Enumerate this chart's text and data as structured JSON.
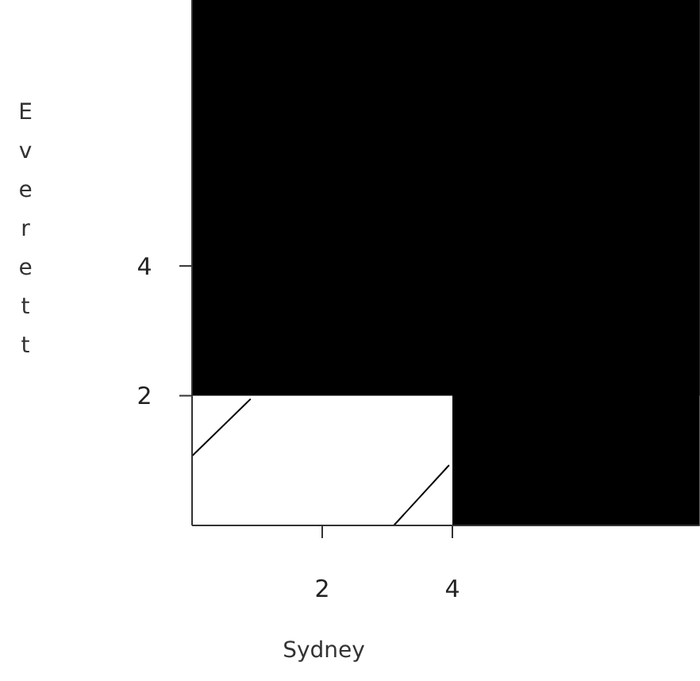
{
  "chart_data": {
    "type": "line",
    "xlabel": "Sydney",
    "ylabel": "Everett",
    "xlim": [
      0,
      7.8
    ],
    "ylim": [
      0,
      8.1
    ],
    "xticks": [
      2,
      4
    ],
    "yticks": [
      2,
      4
    ],
    "grid": false,
    "series": [
      {
        "color": "#000000",
        "x": [
          0,
          0.9
        ],
        "values": [
          1.07,
          1.95
        ]
      },
      {
        "color": "#000000",
        "x": [
          3.1,
          3.95
        ],
        "values": [
          0,
          0.93
        ]
      }
    ],
    "bands": [
      {
        "axis": "y",
        "from": 2,
        "to": 8.1,
        "color": "#000000"
      },
      {
        "axis": "x",
        "from": 4,
        "to": 7.8,
        "color": "#000000"
      }
    ]
  }
}
